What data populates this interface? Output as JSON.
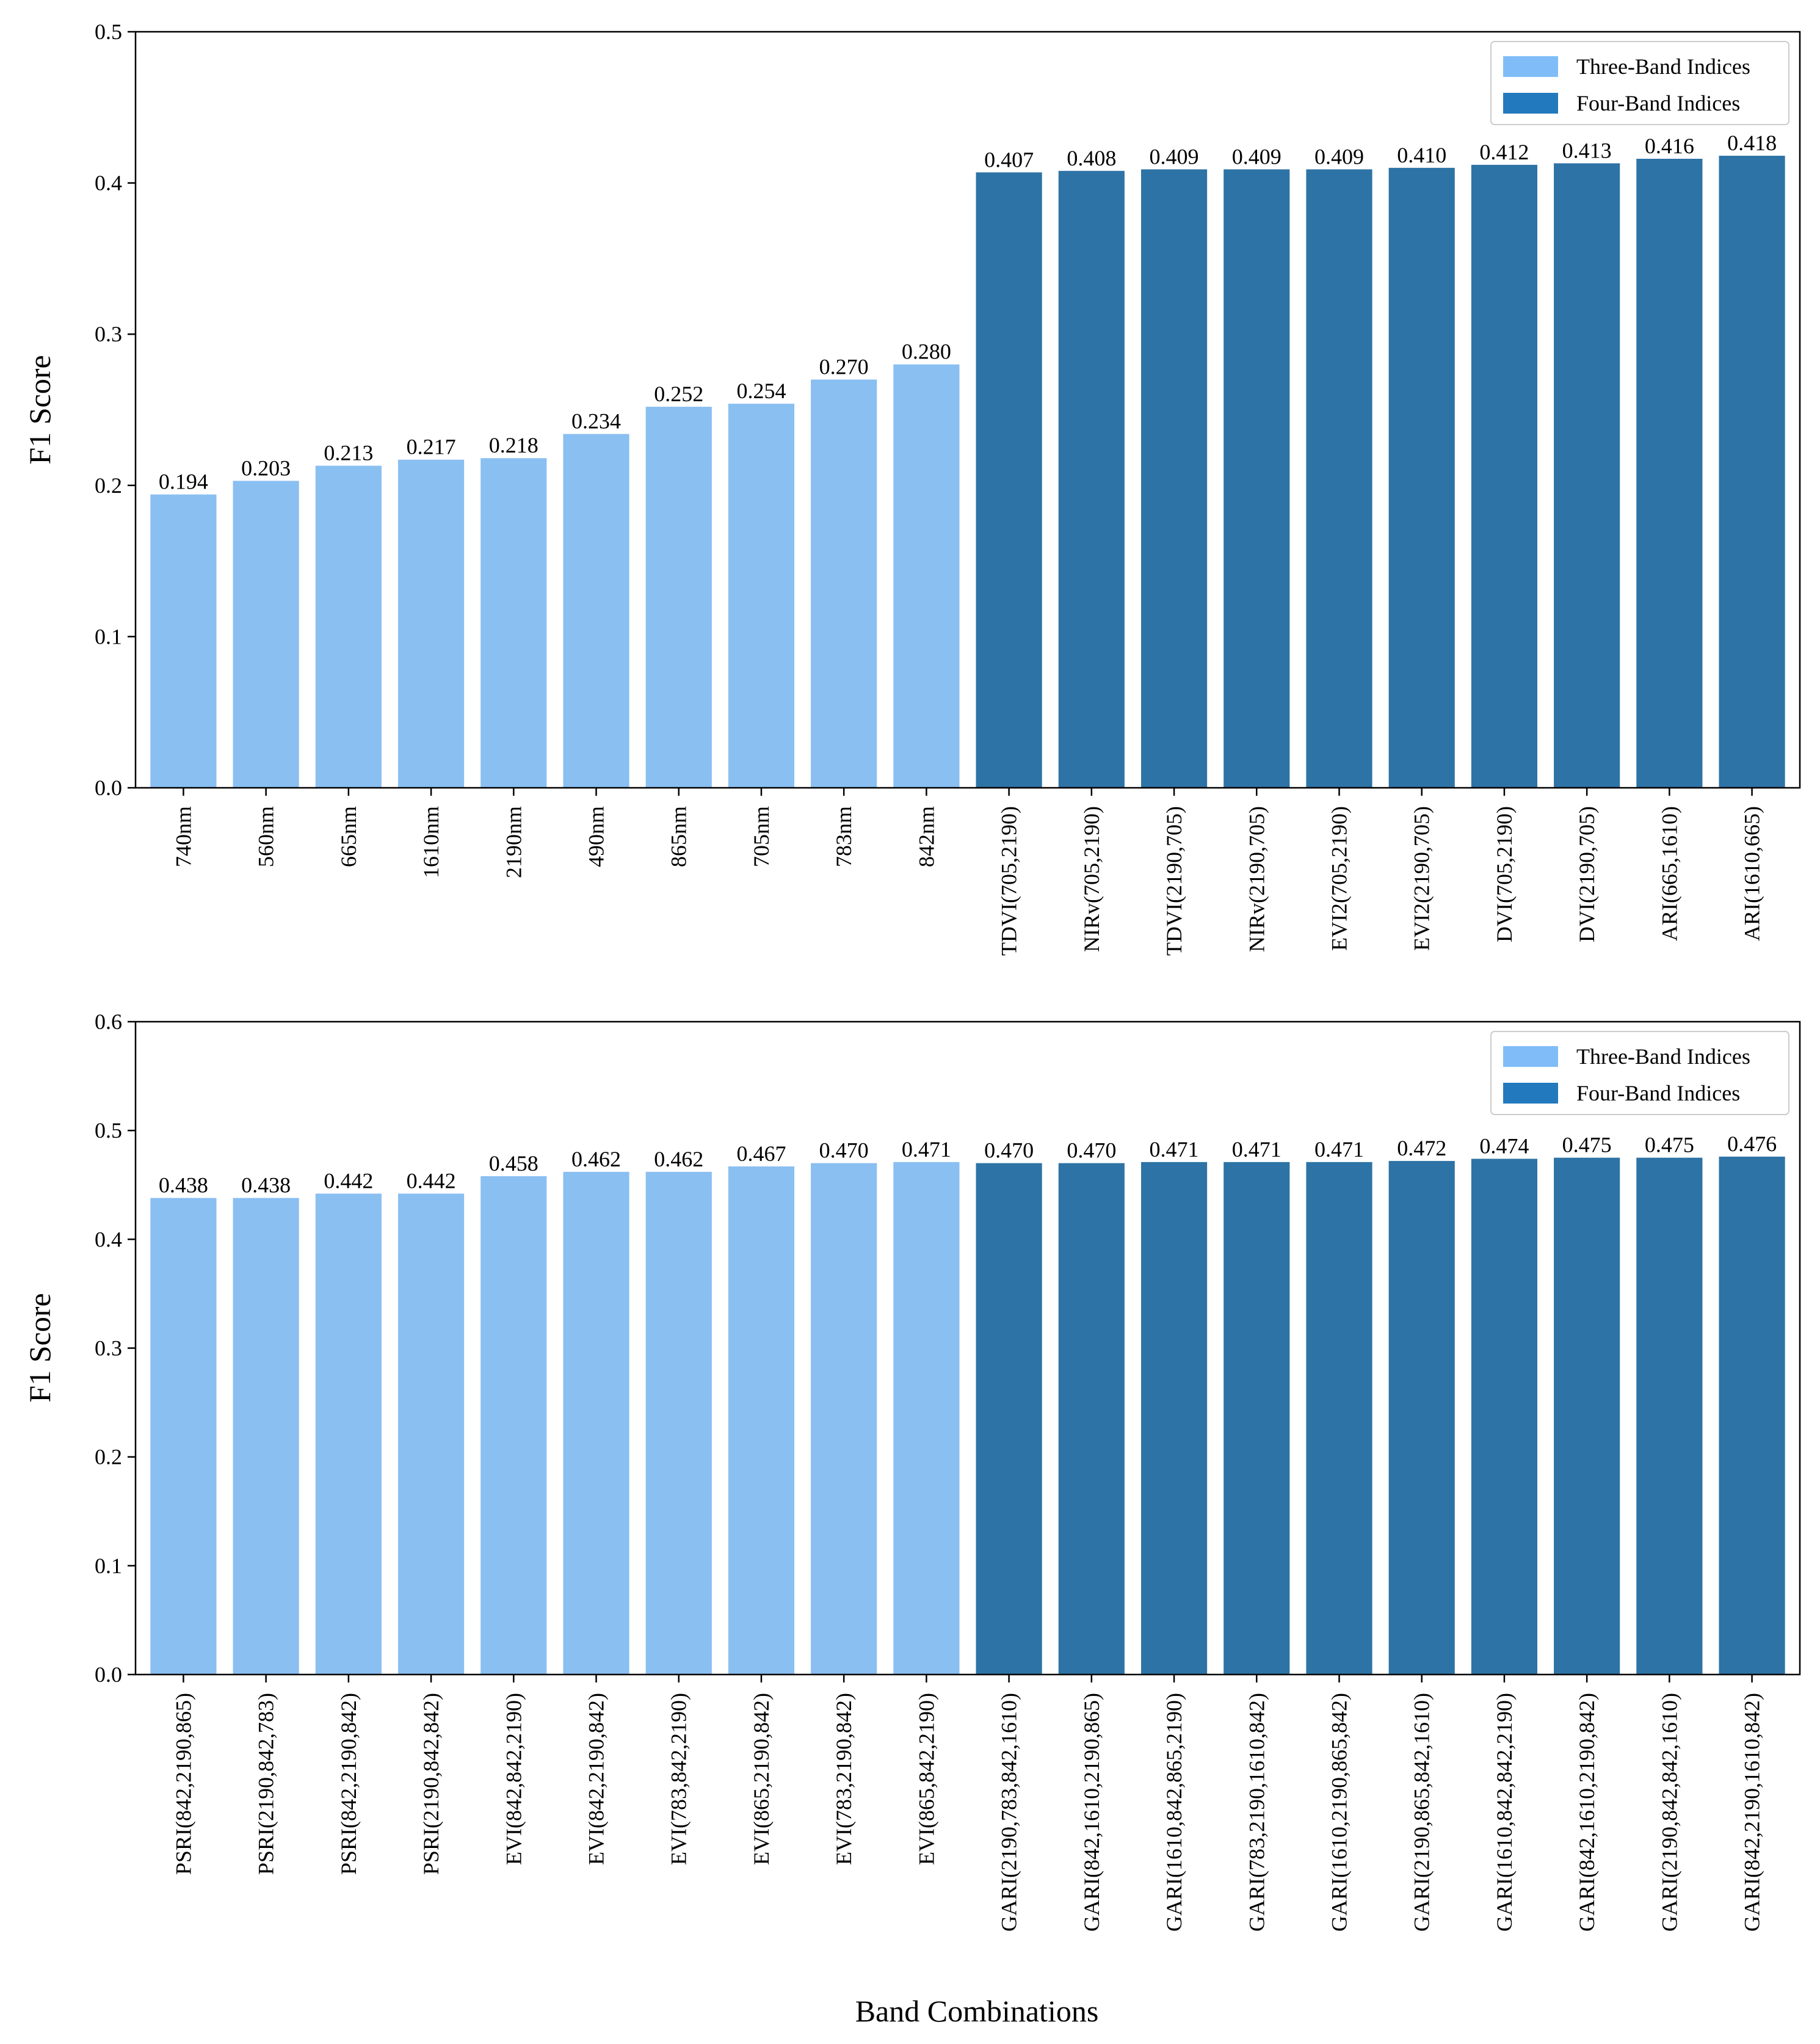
{
  "colors": {
    "three_band": "#8abff2",
    "four_band": "#2e73a5",
    "legend_three_band": "#80bdf8",
    "legend_four_band": "#2379bd"
  },
  "xlabel": "Band  Combinations",
  "chart_data": [
    {
      "type": "bar",
      "title": "",
      "xlabel": "",
      "ylabel": "F1  Score",
      "ylim": [
        0,
        0.5
      ],
      "yticks": [
        "0.0",
        "0.1",
        "0.2",
        "0.3",
        "0.4",
        "0.5"
      ],
      "legend": {
        "position": "top-right",
        "entries": [
          "Three-Band Indices",
          "Four-Band Indices"
        ]
      },
      "categories": [
        "740nm",
        "560nm",
        "665nm",
        "1610nm",
        "2190nm",
        "490nm",
        "865nm",
        "705nm",
        "783nm",
        "842nm",
        "TDVI(705,2190)",
        "NIRv(705,2190)",
        "TDVI(2190,705)",
        "NIRv(2190,705)",
        "EVI2(705,2190)",
        "EVI2(2190,705)",
        "DVI(705,2190)",
        "DVI(2190,705)",
        "ARI(665,1610)",
        "ARI(1610,665)"
      ],
      "values": [
        0.194,
        0.203,
        0.213,
        0.217,
        0.218,
        0.234,
        0.252,
        0.254,
        0.27,
        0.28,
        0.407,
        0.408,
        0.409,
        0.409,
        0.409,
        0.41,
        0.412,
        0.413,
        0.416,
        0.418
      ],
      "labels": [
        "0.194",
        "0.203",
        "0.213",
        "0.217",
        "0.218",
        "0.234",
        "0.252",
        "0.254",
        "0.270",
        "0.280",
        "0.407",
        "0.408",
        "0.409",
        "0.409",
        "0.409",
        "0.410",
        "0.412",
        "0.413",
        "0.416",
        "0.418"
      ],
      "groups": [
        "three",
        "three",
        "three",
        "three",
        "three",
        "three",
        "three",
        "three",
        "three",
        "three",
        "four",
        "four",
        "four",
        "four",
        "four",
        "four",
        "four",
        "four",
        "four",
        "four"
      ]
    },
    {
      "type": "bar",
      "title": "",
      "xlabel": "Band  Combinations",
      "ylabel": "F1  Score",
      "ylim": [
        0,
        0.6
      ],
      "yticks": [
        "0.0",
        "0.1",
        "0.2",
        "0.3",
        "0.4",
        "0.5",
        "0.6"
      ],
      "legend": {
        "position": "top-right",
        "entries": [
          "Three-Band Indices",
          "Four-Band Indices"
        ]
      },
      "categories": [
        "PSRI(842,2190,865)",
        "PSRI(2190,842,783)",
        "PSRI(842,2190,842)",
        "PSRI(2190,842,842)",
        "EVI(842,842,2190)",
        "EVI(842,2190,842)",
        "EVI(783,842,2190)",
        "EVI(865,2190,842)",
        "EVI(783,2190,842)",
        "EVI(865,842,2190)",
        "GARI(2190,783,842,1610)",
        "GARI(842,1610,2190,865)",
        "GARI(1610,842,865,2190)",
        "GARI(783,2190,1610,842)",
        "GARI(1610,2190,865,842)",
        "GARI(2190,865,842,1610)",
        "GARI(1610,842,842,2190)",
        "GARI(842,1610,2190,842)",
        "GARI(2190,842,842,1610)",
        "GARI(842,2190,1610,842)"
      ],
      "values": [
        0.438,
        0.438,
        0.442,
        0.442,
        0.458,
        0.462,
        0.462,
        0.467,
        0.47,
        0.471,
        0.47,
        0.47,
        0.471,
        0.471,
        0.471,
        0.472,
        0.474,
        0.475,
        0.475,
        0.476
      ],
      "labels": [
        "0.438",
        "0.438",
        "0.442",
        "0.442",
        "0.458",
        "0.462",
        "0.462",
        "0.467",
        "0.470",
        "0.471",
        "0.470",
        "0.470",
        "0.471",
        "0.471",
        "0.471",
        "0.472",
        "0.474",
        "0.475",
        "0.475",
        "0.476"
      ],
      "groups": [
        "three",
        "three",
        "three",
        "three",
        "three",
        "three",
        "three",
        "three",
        "three",
        "three",
        "four",
        "four",
        "four",
        "four",
        "four",
        "four",
        "four",
        "four",
        "four",
        "four"
      ]
    }
  ]
}
